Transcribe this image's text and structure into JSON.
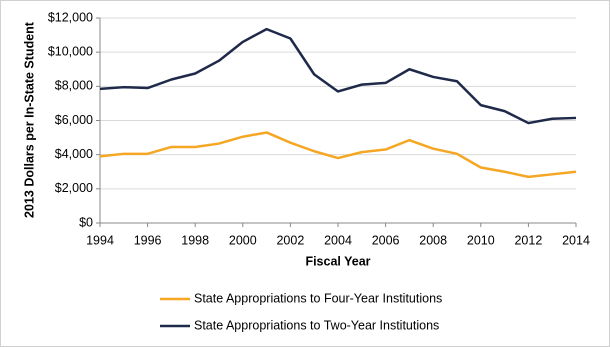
{
  "chart_data": {
    "type": "line",
    "y_label": "2013 Dollars per In-State Student",
    "x_label": "Fiscal Year",
    "x": [
      1994,
      1995,
      1996,
      1997,
      1998,
      1999,
      2000,
      2001,
      2002,
      2003,
      2004,
      2005,
      2006,
      2007,
      2008,
      2009,
      2010,
      2011,
      2012,
      2013,
      2014
    ],
    "series": [
      {
        "name": "State Appropriations to Four-Year Institutions",
        "color": "#f5a623",
        "values": [
          3900,
          4050,
          4050,
          4450,
          4450,
          4650,
          5050,
          5300,
          4700,
          4200,
          3800,
          4150,
          4300,
          4850,
          4350,
          4050,
          3250,
          3000,
          2700,
          2850,
          3000
        ]
      },
      {
        "name": "State Appropriations to Two-Year Institutions",
        "color": "#1f2a4a",
        "values": [
          7850,
          7950,
          7900,
          8400,
          8750,
          9500,
          10600,
          11350,
          10800,
          8700,
          7700,
          8100,
          8200,
          9000,
          8550,
          8300,
          6900,
          6550,
          5850,
          6100,
          6150
        ]
      }
    ],
    "xlim": [
      1994,
      2014
    ],
    "xticks": [
      1994,
      1996,
      1998,
      2000,
      2002,
      2004,
      2006,
      2008,
      2010,
      2012,
      2014
    ],
    "ylim": [
      0,
      12000
    ],
    "yticks": [
      {
        "value": 0,
        "label": "$0"
      },
      {
        "value": 2000,
        "label": "$2,000"
      },
      {
        "value": 4000,
        "label": "$4,000"
      },
      {
        "value": 6000,
        "label": "$6,000"
      },
      {
        "value": 8000,
        "label": "$8,000"
      },
      {
        "value": 10000,
        "label": "$10,000"
      },
      {
        "value": 12000,
        "label": "$12,000"
      }
    ],
    "grid": true
  }
}
